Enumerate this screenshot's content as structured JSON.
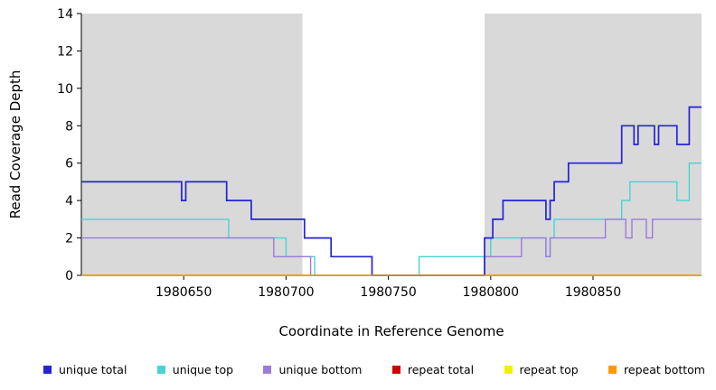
{
  "chart_data": {
    "type": "line",
    "step": true,
    "title": "",
    "xlabel": "Coordinate in Reference Genome",
    "ylabel": "Read Coverage Depth",
    "xlim": [
      1980600,
      1980903
    ],
    "ylim": [
      0,
      14
    ],
    "x_ticks": [
      1980650,
      1980700,
      1980750,
      1980800,
      1980850
    ],
    "y_ticks": [
      0,
      2,
      4,
      6,
      8,
      10,
      12,
      14
    ],
    "grid": false,
    "plot_background": "#ffffff",
    "shaded_regions": [
      {
        "x0": 1980600,
        "x1": 1980708,
        "color": "#d9d9d9"
      },
      {
        "x0": 1980797,
        "x1": 1980903,
        "color": "#d9d9d9"
      }
    ],
    "series": [
      {
        "name": "unique total",
        "color": "#2424d6",
        "points": [
          [
            1980600,
            5
          ],
          [
            1980649,
            4
          ],
          [
            1980651,
            5
          ],
          [
            1980671,
            4
          ],
          [
            1980683,
            3
          ],
          [
            1980709,
            2
          ],
          [
            1980722,
            1
          ],
          [
            1980742,
            0
          ],
          [
            1980797,
            2
          ],
          [
            1980801,
            3
          ],
          [
            1980806,
            4
          ],
          [
            1980827,
            3
          ],
          [
            1980829,
            4
          ],
          [
            1980831,
            5
          ],
          [
            1980838,
            6
          ],
          [
            1980864,
            8
          ],
          [
            1980870,
            7
          ],
          [
            1980872,
            8
          ],
          [
            1980880,
            7
          ],
          [
            1980882,
            8
          ],
          [
            1980891,
            7
          ],
          [
            1980897,
            9
          ]
        ]
      },
      {
        "name": "unique top",
        "color": "#49d3d3",
        "points": [
          [
            1980600,
            3
          ],
          [
            1980672,
            2
          ],
          [
            1980700,
            1
          ],
          [
            1980714,
            0
          ],
          [
            1980765,
            1
          ],
          [
            1980800,
            2
          ],
          [
            1980827,
            1
          ],
          [
            1980829,
            2
          ],
          [
            1980831,
            3
          ],
          [
            1980864,
            4
          ],
          [
            1980868,
            5
          ],
          [
            1980891,
            4
          ],
          [
            1980897,
            6
          ]
        ]
      },
      {
        "name": "unique bottom",
        "color": "#9d7bd8",
        "points": [
          [
            1980600,
            2
          ],
          [
            1980694,
            1
          ],
          [
            1980712,
            0
          ],
          [
            1980797,
            1
          ],
          [
            1980815,
            2
          ],
          [
            1980827,
            1
          ],
          [
            1980829,
            2
          ],
          [
            1980856,
            3
          ],
          [
            1980866,
            2
          ],
          [
            1980869,
            3
          ],
          [
            1980876,
            2
          ],
          [
            1980879,
            3
          ]
        ]
      },
      {
        "name": "repeat total",
        "color": "#cc0000",
        "points": [
          [
            1980600,
            0
          ]
        ]
      },
      {
        "name": "repeat top",
        "color": "#f0f000",
        "points": [
          [
            1980600,
            0
          ]
        ]
      },
      {
        "name": "repeat bottom",
        "color": "#ff9900",
        "points": [
          [
            1980600,
            0
          ]
        ]
      }
    ],
    "legend_position": "bottom"
  }
}
